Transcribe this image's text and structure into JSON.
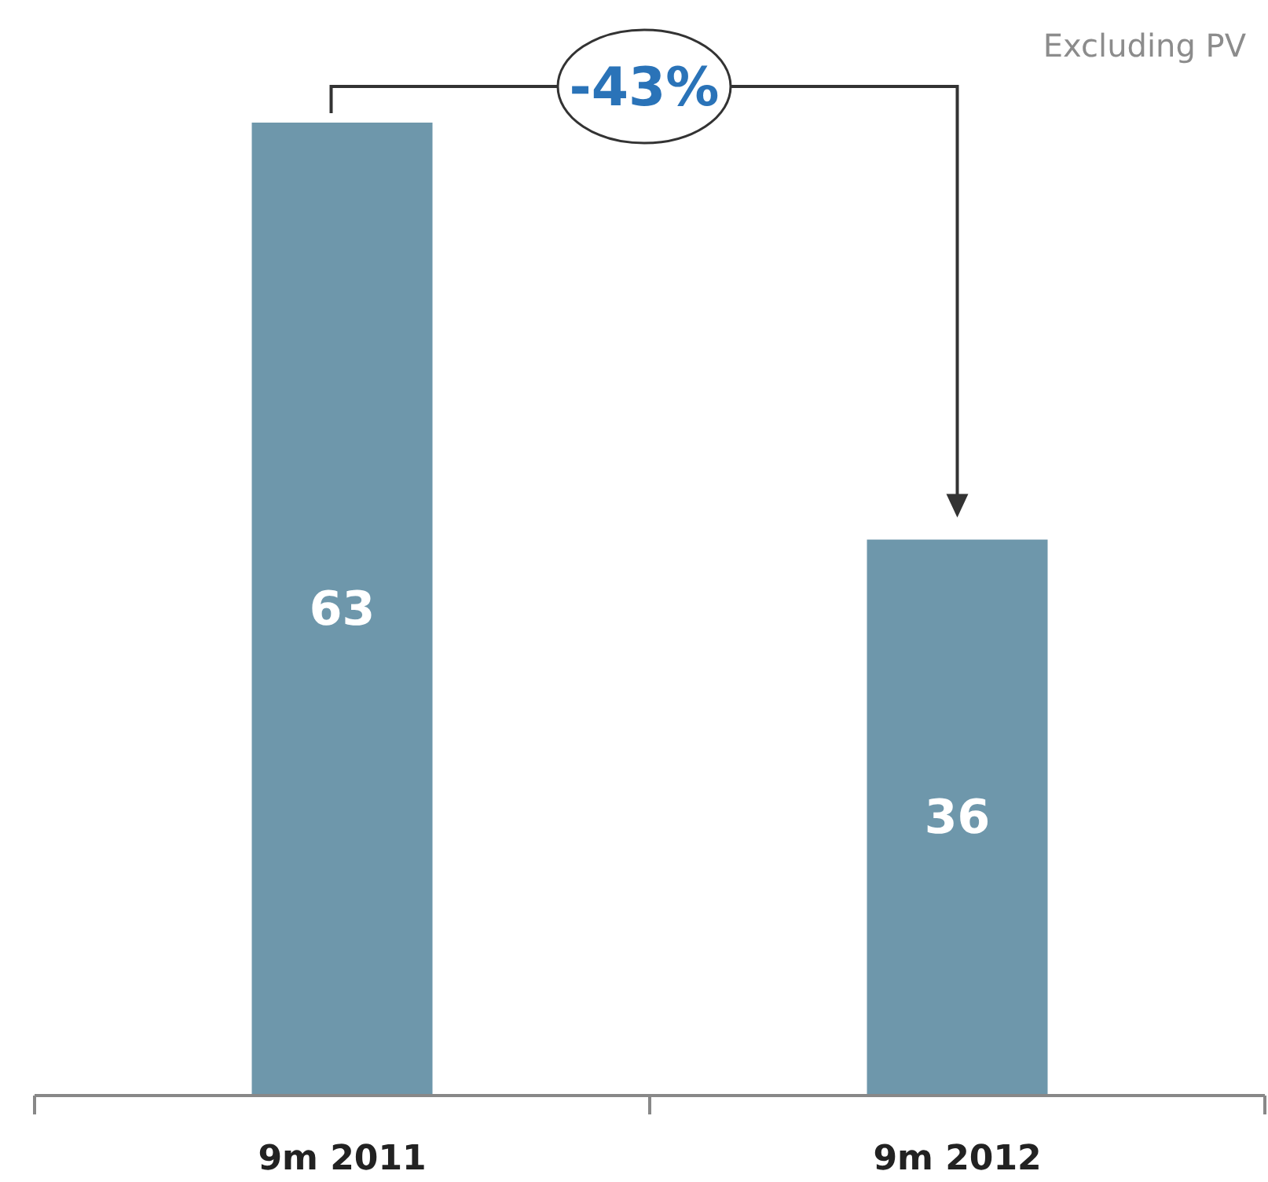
{
  "chart_data": {
    "type": "bar",
    "categories": [
      "9m 2011",
      "9m 2012"
    ],
    "values": [
      63,
      36
    ],
    "color": "#6e97ab",
    "data_labels": true,
    "annotations": [
      "Excluding PV",
      "-43%"
    ]
  }
}
